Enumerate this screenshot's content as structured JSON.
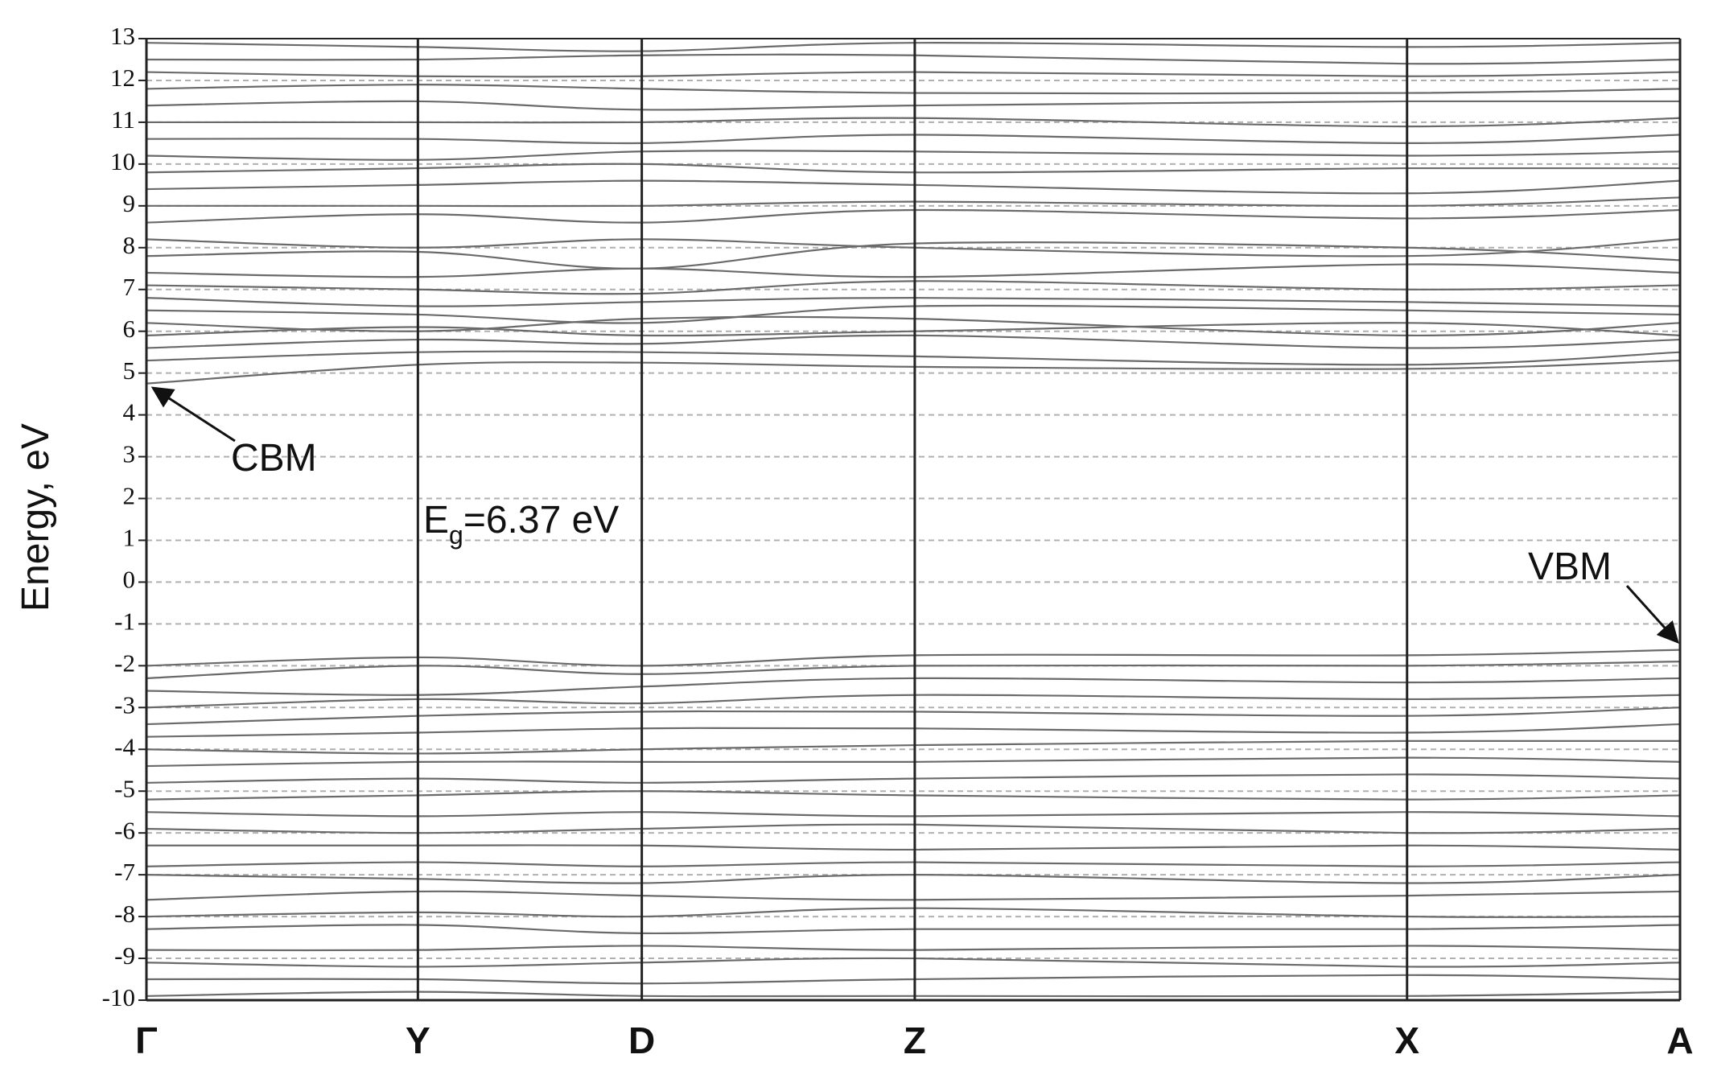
{
  "chart_data": {
    "type": "band-structure",
    "ylabel": "Energy, eV",
    "color": "#6a6a6a",
    "grid": true,
    "xlim": [
      0,
      10
    ],
    "xticks": [
      {
        "value": 0,
        "label": "Γ"
      },
      {
        "value": 1.77,
        "label": "Y"
      },
      {
        "value": 3.23,
        "label": "D"
      },
      {
        "value": 5.01,
        "label": "Z"
      },
      {
        "value": 8.22,
        "label": "X"
      },
      {
        "value": 10,
        "label": "A"
      }
    ],
    "ylim": [
      -10,
      13
    ],
    "yticks": [
      -10,
      -9,
      -8,
      -7,
      -6,
      -5,
      -4,
      -3,
      -2,
      -1,
      0,
      1,
      2,
      3,
      4,
      5,
      6,
      7,
      8,
      9,
      10,
      11,
      12,
      13
    ],
    "annotations": {
      "cbm": "CBM",
      "vbm": "VBM",
      "gap": {
        "symbol": "E",
        "subscript": "g",
        "text": "=6.37 eV"
      }
    },
    "x": [
      0,
      1.77,
      3.23,
      5.01,
      8.22,
      10
    ],
    "series": [
      {
        "values": [
          4.75,
          5.2,
          5.25,
          5.15,
          5.1,
          5.3
        ]
      },
      {
        "values": [
          5.3,
          5.5,
          5.5,
          5.4,
          5.2,
          5.5
        ]
      },
      {
        "values": [
          5.6,
          5.8,
          5.7,
          5.9,
          5.6,
          5.8
        ]
      },
      {
        "values": [
          5.9,
          6.1,
          5.9,
          6.0,
          6.2,
          5.9
        ]
      },
      {
        "values": [
          6.2,
          6.0,
          6.3,
          6.3,
          5.9,
          6.2
        ]
      },
      {
        "values": [
          6.5,
          6.4,
          6.2,
          6.6,
          6.5,
          6.4
        ]
      },
      {
        "values": [
          6.8,
          6.6,
          6.7,
          6.8,
          6.7,
          6.6
        ]
      },
      {
        "values": [
          7.1,
          7.0,
          6.9,
          7.2,
          7.0,
          7.1
        ]
      },
      {
        "values": [
          7.4,
          7.3,
          7.5,
          7.3,
          7.6,
          7.4
        ]
      },
      {
        "values": [
          7.8,
          7.9,
          7.5,
          8.1,
          8.0,
          7.7
        ]
      },
      {
        "values": [
          8.2,
          8.0,
          8.2,
          8.0,
          7.8,
          8.2
        ]
      },
      {
        "values": [
          8.6,
          8.8,
          8.6,
          8.9,
          8.7,
          8.9
        ]
      },
      {
        "values": [
          9.0,
          9.0,
          9.0,
          9.1,
          9.0,
          9.2
        ]
      },
      {
        "values": [
          9.4,
          9.5,
          9.6,
          9.5,
          9.3,
          9.6
        ]
      },
      {
        "values": [
          9.8,
          9.9,
          10.0,
          9.8,
          9.9,
          9.9
        ]
      },
      {
        "values": [
          10.2,
          10.1,
          10.3,
          10.3,
          10.2,
          10.3
        ]
      },
      {
        "values": [
          10.6,
          10.6,
          10.5,
          10.7,
          10.5,
          10.7
        ]
      },
      {
        "values": [
          11.0,
          11.0,
          11.0,
          11.1,
          10.9,
          11.1
        ]
      },
      {
        "values": [
          11.4,
          11.5,
          11.3,
          11.4,
          11.5,
          11.5
        ]
      },
      {
        "values": [
          11.8,
          11.9,
          11.8,
          11.7,
          11.7,
          11.8
        ]
      },
      {
        "values": [
          12.2,
          12.1,
          12.1,
          12.2,
          12.1,
          12.2
        ]
      },
      {
        "values": [
          12.5,
          12.5,
          12.6,
          12.6,
          12.4,
          12.5
        ]
      },
      {
        "values": [
          12.9,
          12.8,
          12.7,
          12.9,
          12.8,
          12.9
        ]
      },
      {
        "values": [
          -2.0,
          -1.8,
          -2.0,
          -1.75,
          -1.75,
          -1.62
        ]
      },
      {
        "values": [
          -2.3,
          -2.0,
          -2.2,
          -2.0,
          -2.0,
          -1.9
        ]
      },
      {
        "values": [
          -2.6,
          -2.7,
          -2.5,
          -2.3,
          -2.4,
          -2.3
        ]
      },
      {
        "values": [
          -3.0,
          -2.8,
          -2.9,
          -2.7,
          -2.8,
          -2.7
        ]
      },
      {
        "values": [
          -3.4,
          -3.2,
          -3.1,
          -3.1,
          -3.2,
          -3.0
        ]
      },
      {
        "values": [
          -3.7,
          -3.6,
          -3.5,
          -3.5,
          -3.6,
          -3.4
        ]
      },
      {
        "values": [
          -4.0,
          -4.1,
          -4.0,
          -3.9,
          -3.8,
          -3.8
        ]
      },
      {
        "values": [
          -4.4,
          -4.3,
          -4.3,
          -4.3,
          -4.2,
          -4.3
        ]
      },
      {
        "values": [
          -4.8,
          -4.7,
          -4.8,
          -4.7,
          -4.6,
          -4.7
        ]
      },
      {
        "values": [
          -5.2,
          -5.1,
          -5.0,
          -5.1,
          -5.2,
          -5.1
        ]
      },
      {
        "values": [
          -5.5,
          -5.6,
          -5.5,
          -5.6,
          -5.5,
          -5.6
        ]
      },
      {
        "values": [
          -5.9,
          -6.0,
          -5.9,
          -5.8,
          -6.0,
          -5.9
        ]
      },
      {
        "values": [
          -6.3,
          -6.3,
          -6.3,
          -6.4,
          -6.3,
          -6.4
        ]
      },
      {
        "values": [
          -6.8,
          -6.7,
          -6.8,
          -6.7,
          -6.8,
          -6.7
        ]
      },
      {
        "values": [
          -7.0,
          -7.1,
          -7.2,
          -7.0,
          -7.2,
          -7.0
        ]
      },
      {
        "values": [
          -7.6,
          -7.4,
          -7.5,
          -7.6,
          -7.5,
          -7.4
        ]
      },
      {
        "values": [
          -8.0,
          -7.9,
          -8.0,
          -7.8,
          -8.0,
          -8.0
        ]
      },
      {
        "values": [
          -8.3,
          -8.2,
          -8.4,
          -8.3,
          -8.3,
          -8.2
        ]
      },
      {
        "values": [
          -8.8,
          -8.8,
          -8.7,
          -8.8,
          -8.7,
          -8.8
        ]
      },
      {
        "values": [
          -9.1,
          -9.2,
          -9.1,
          -9.0,
          -9.2,
          -9.1
        ]
      },
      {
        "values": [
          -9.5,
          -9.5,
          -9.6,
          -9.5,
          -9.4,
          -9.5
        ]
      },
      {
        "values": [
          -9.9,
          -9.8,
          -9.9,
          -9.9,
          -9.9,
          -9.8
        ]
      }
    ]
  }
}
